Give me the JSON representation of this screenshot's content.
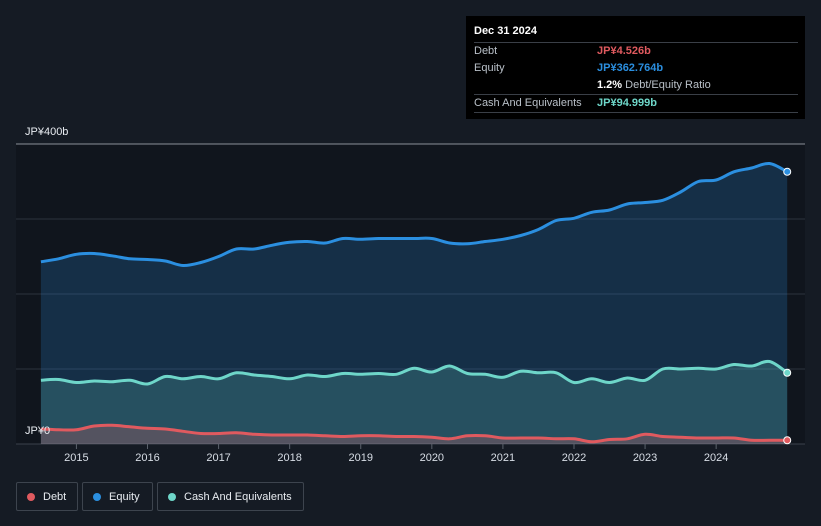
{
  "tooltip": {
    "date": "Dec 31 2024",
    "debt_label": "Debt",
    "debt_value": "JP¥4.526b",
    "equity_label": "Equity",
    "equity_value": "JP¥362.764b",
    "ratio_value": "1.2%",
    "ratio_label": "Debt/Equity Ratio",
    "cash_label": "Cash And Equivalents",
    "cash_value": "JP¥94.999b"
  },
  "legend": {
    "debt": "Debt",
    "equity": "Equity",
    "cash": "Cash And Equivalents"
  },
  "colors": {
    "debt": "#e05a5f",
    "equity": "#2b8fe0",
    "cash": "#6ed6c9",
    "background": "#151b24"
  },
  "chart_data": {
    "type": "area",
    "title": "",
    "ylim": [
      0,
      400
    ],
    "yaxis_labels": {
      "top": "JP¥400b",
      "bottom": "JP¥0"
    },
    "x_ticks": [
      {
        "label": "2015",
        "t": 2015.0
      },
      {
        "label": "2016",
        "t": 2016.0
      },
      {
        "label": "2017",
        "t": 2017.0
      },
      {
        "label": "2018",
        "t": 2018.0
      },
      {
        "label": "2019",
        "t": 2019.0
      },
      {
        "label": "2020",
        "t": 2020.0
      },
      {
        "label": "2021",
        "t": 2021.0
      },
      {
        "label": "2022",
        "t": 2022.0
      },
      {
        "label": "2023",
        "t": 2023.0
      },
      {
        "label": "2024",
        "t": 2024.0
      }
    ],
    "x_range": [
      2014.15,
      2025.25
    ],
    "x": [
      2014.5,
      2014.75,
      2015.0,
      2015.25,
      2015.5,
      2015.75,
      2016.0,
      2016.25,
      2016.5,
      2016.75,
      2017.0,
      2017.25,
      2017.5,
      2017.75,
      2018.0,
      2018.25,
      2018.5,
      2018.75,
      2019.0,
      2019.25,
      2019.5,
      2019.75,
      2020.0,
      2020.25,
      2020.5,
      2020.75,
      2021.0,
      2021.25,
      2021.5,
      2021.75,
      2022.0,
      2022.25,
      2022.5,
      2022.75,
      2023.0,
      2023.25,
      2023.5,
      2023.75,
      2024.0,
      2024.25,
      2024.5,
      2024.75,
      2025.0
    ],
    "series": [
      {
        "name": "Equity",
        "key": "equity",
        "values": [
          243,
          247,
          253,
          254,
          251,
          247,
          246,
          244,
          238,
          242,
          250,
          260,
          260,
          265,
          269,
          270,
          268,
          274,
          273,
          274,
          274,
          274,
          274,
          268,
          267,
          270,
          273,
          278,
          286,
          298,
          301,
          309,
          312,
          320,
          322,
          325,
          336,
          350,
          352,
          363,
          368,
          374,
          363
        ]
      },
      {
        "name": "Cash And Equivalents",
        "key": "cash",
        "values": [
          85,
          86,
          82,
          84,
          83,
          85,
          80,
          90,
          87,
          90,
          87,
          95,
          92,
          90,
          87,
          92,
          90,
          94,
          93,
          94,
          93,
          101,
          96,
          104,
          94,
          93,
          89,
          97,
          95,
          95,
          82,
          87,
          82,
          88,
          85,
          100,
          100,
          101,
          100,
          106,
          104,
          110,
          95
        ]
      },
      {
        "name": "Debt",
        "key": "debt",
        "values": [
          20,
          19,
          19,
          24,
          25,
          23,
          21,
          20,
          17,
          14,
          14,
          15,
          13,
          12,
          12,
          12,
          11,
          10,
          11,
          11,
          10,
          10,
          9,
          7,
          11,
          11,
          8,
          8,
          8,
          7,
          7,
          3,
          6,
          7,
          13,
          10,
          9,
          8,
          8,
          8,
          5,
          5,
          5
        ]
      }
    ]
  }
}
